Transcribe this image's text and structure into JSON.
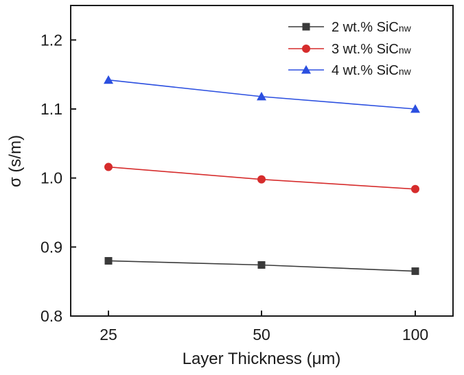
{
  "chart_data": {
    "type": "line",
    "title": "",
    "xlabel": "Layer Thickness (μm)",
    "ylabel": "σ (s/m)",
    "categories": [
      "25",
      "50",
      "100"
    ],
    "ylim": [
      0.8,
      1.25
    ],
    "yticks": [
      "0.8",
      "0.9",
      "1.0",
      "1.1",
      "1.2"
    ],
    "grid": false,
    "legend_position": "top-right",
    "series": [
      {
        "name": "2 wt.% SiCnw",
        "name_main": "2 wt.% SiC",
        "name_sub": "nw",
        "values": [
          0.88,
          0.874,
          0.865
        ],
        "color": "#3a3a3a",
        "marker": "square"
      },
      {
        "name": "3 wt.% SiCnw",
        "name_main": "3 wt.% SiC",
        "name_sub": "nw",
        "values": [
          1.016,
          0.998,
          0.984
        ],
        "color": "#d62c2c",
        "marker": "circle"
      },
      {
        "name": "4 wt.% SiCnw",
        "name_main": "4 wt.% SiC",
        "name_sub": "nw",
        "values": [
          1.142,
          1.118,
          1.1
        ],
        "color": "#2b4fe0",
        "marker": "triangle"
      }
    ]
  }
}
